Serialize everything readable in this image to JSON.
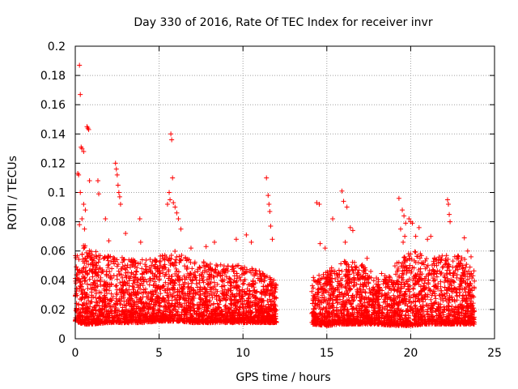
{
  "chart_data": {
    "type": "scatter",
    "title": "Day 330 of 2016, Rate Of TEC Index for receiver invr",
    "xlabel": "GPS time / hours",
    "ylabel": "ROTI / TECUs",
    "xlim": [
      0,
      25
    ],
    "ylim": [
      0,
      0.2
    ],
    "x_ticks": [
      "0",
      "5",
      "10",
      "15",
      "20",
      "25"
    ],
    "y_ticks": [
      "0",
      "0.02",
      "0.04",
      "0.06",
      "0.08",
      "0.1",
      "0.12",
      "0.14",
      "0.16",
      "0.18",
      "0.2"
    ],
    "grid": true,
    "marker": "+",
    "color": "#ff0000",
    "data_gap_hours": [
      12.0,
      14.1
    ],
    "series": [
      {
        "name": "ROTI",
        "points": [
          [
            0.25,
            0.187
          ],
          [
            0.3,
            0.167
          ],
          [
            0.35,
            0.131
          ],
          [
            0.4,
            0.13
          ],
          [
            0.5,
            0.128
          ],
          [
            0.7,
            0.145
          ],
          [
            0.75,
            0.144
          ],
          [
            0.8,
            0.143
          ],
          [
            0.85,
            0.108
          ],
          [
            0.2,
            0.112
          ],
          [
            0.15,
            0.113
          ],
          [
            0.3,
            0.1
          ],
          [
            0.5,
            0.092
          ],
          [
            0.6,
            0.088
          ],
          [
            0.4,
            0.082
          ],
          [
            0.25,
            0.078
          ],
          [
            0.55,
            0.075
          ],
          [
            1.35,
            0.108
          ],
          [
            1.4,
            0.099
          ],
          [
            1.8,
            0.082
          ],
          [
            2.0,
            0.067
          ],
          [
            2.4,
            0.12
          ],
          [
            2.45,
            0.116
          ],
          [
            2.5,
            0.112
          ],
          [
            2.55,
            0.105
          ],
          [
            2.6,
            0.1
          ],
          [
            2.65,
            0.097
          ],
          [
            2.7,
            0.092
          ],
          [
            3.0,
            0.072
          ],
          [
            3.85,
            0.082
          ],
          [
            3.9,
            0.066
          ],
          [
            5.7,
            0.14
          ],
          [
            5.75,
            0.136
          ],
          [
            5.8,
            0.11
          ],
          [
            5.6,
            0.1
          ],
          [
            5.5,
            0.092
          ],
          [
            5.65,
            0.095
          ],
          [
            5.85,
            0.093
          ],
          [
            5.95,
            0.09
          ],
          [
            6.05,
            0.086
          ],
          [
            6.15,
            0.082
          ],
          [
            6.3,
            0.075
          ],
          [
            6.9,
            0.062
          ],
          [
            7.8,
            0.063
          ],
          [
            8.3,
            0.066
          ],
          [
            9.6,
            0.068
          ],
          [
            10.2,
            0.071
          ],
          [
            10.5,
            0.066
          ],
          [
            11.4,
            0.11
          ],
          [
            11.5,
            0.098
          ],
          [
            11.55,
            0.092
          ],
          [
            11.6,
            0.087
          ],
          [
            11.65,
            0.077
          ],
          [
            11.75,
            0.068
          ],
          [
            14.4,
            0.093
          ],
          [
            14.55,
            0.092
          ],
          [
            14.6,
            0.065
          ],
          [
            14.9,
            0.062
          ],
          [
            15.35,
            0.082
          ],
          [
            15.9,
            0.101
          ],
          [
            16.0,
            0.094
          ],
          [
            16.2,
            0.09
          ],
          [
            16.4,
            0.076
          ],
          [
            16.55,
            0.074
          ],
          [
            16.1,
            0.066
          ],
          [
            17.4,
            0.055
          ],
          [
            19.3,
            0.096
          ],
          [
            19.5,
            0.088
          ],
          [
            19.6,
            0.084
          ],
          [
            19.7,
            0.079
          ],
          [
            19.4,
            0.075
          ],
          [
            19.65,
            0.07
          ],
          [
            19.55,
            0.066
          ],
          [
            19.9,
            0.082
          ],
          [
            20.0,
            0.08
          ],
          [
            20.1,
            0.079
          ],
          [
            20.3,
            0.07
          ],
          [
            20.5,
            0.076
          ],
          [
            21.0,
            0.068
          ],
          [
            21.2,
            0.07
          ],
          [
            22.2,
            0.095
          ],
          [
            22.25,
            0.092
          ],
          [
            22.3,
            0.085
          ],
          [
            22.35,
            0.08
          ],
          [
            23.2,
            0.069
          ],
          [
            23.4,
            0.06
          ],
          [
            23.6,
            0.056
          ]
        ],
        "density_envelope": {
          "hours": [
            0,
            0.5,
            1,
            2,
            3,
            4,
            5,
            6,
            7,
            8,
            9,
            10,
            11,
            12,
            14.1,
            15,
            16,
            17,
            18,
            19,
            20,
            21,
            22,
            23,
            23.8
          ],
          "upper": [
            0.055,
            0.062,
            0.058,
            0.055,
            0.053,
            0.052,
            0.055,
            0.058,
            0.052,
            0.05,
            0.048,
            0.05,
            0.045,
            0.038,
            0.04,
            0.045,
            0.052,
            0.05,
            0.042,
            0.048,
            0.058,
            0.055,
            0.055,
            0.055,
            0.045
          ],
          "lower": [
            0.012,
            0.01,
            0.01,
            0.011,
            0.011,
            0.011,
            0.012,
            0.012,
            0.011,
            0.011,
            0.011,
            0.011,
            0.011,
            0.011,
            0.01,
            0.009,
            0.01,
            0.01,
            0.01,
            0.009,
            0.009,
            0.01,
            0.01,
            0.01,
            0.01
          ]
        }
      }
    ]
  }
}
